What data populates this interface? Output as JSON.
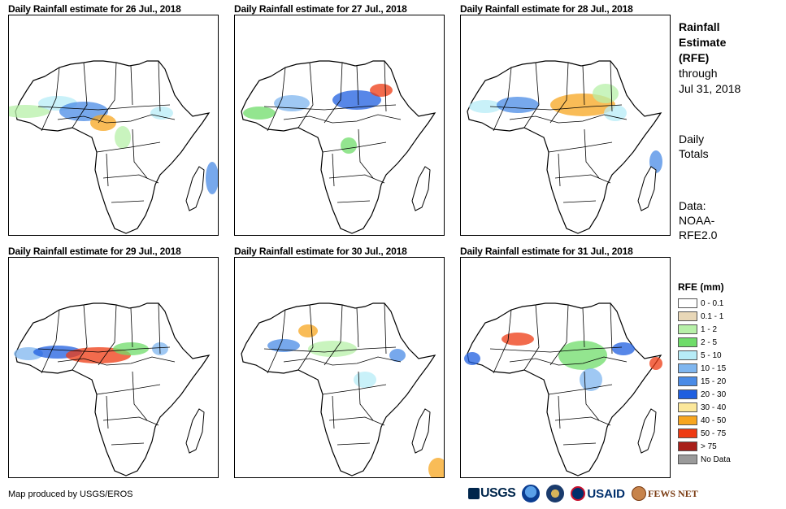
{
  "panels": [
    {
      "title": "Daily Rainfall estimate for 26 Jul., 2018"
    },
    {
      "title": "Daily Rainfall estimate for 27 Jul., 2018"
    },
    {
      "title": "Daily Rainfall estimate for 28 Jul., 2018"
    },
    {
      "title": "Daily Rainfall estimate for 29 Jul., 2018"
    },
    {
      "title": "Daily Rainfall estimate for 30 Jul., 2018"
    },
    {
      "title": "Daily Rainfall estimate for 31 Jul., 2018"
    }
  ],
  "sidebar": {
    "title_lines": [
      "Rainfall",
      "Estimate",
      "(RFE)"
    ],
    "through_lines": [
      "through",
      "Jul 31, 2018"
    ],
    "totals_lines": [
      "Daily",
      "Totals"
    ],
    "data_lines": [
      "Data:",
      "NOAA-",
      "RFE2.0"
    ]
  },
  "legend": {
    "title": "RFE (mm)",
    "items": [
      {
        "label": "0 - 0.1",
        "color": "#ffffff"
      },
      {
        "label": "0.1 - 1",
        "color": "#e8d7b7"
      },
      {
        "label": "1 - 2",
        "color": "#b7f0a8"
      },
      {
        "label": "2 - 5",
        "color": "#6fdc6a"
      },
      {
        "label": "5 - 10",
        "color": "#b7ecf7"
      },
      {
        "label": "10 - 15",
        "color": "#7fb6ef"
      },
      {
        "label": "15 - 20",
        "color": "#4a8be6"
      },
      {
        "label": "20 - 30",
        "color": "#1f5fe0"
      },
      {
        "label": "30 - 40",
        "color": "#fbe79a"
      },
      {
        "label": "40 - 50",
        "color": "#f7a51f"
      },
      {
        "label": "50 - 75",
        "color": "#ee3a12"
      },
      {
        "label": "> 75",
        "color": "#a8201a"
      },
      {
        "label": "No Data",
        "color": "#9a9a9a"
      }
    ]
  },
  "footer": {
    "credit": "Map produced by USGS/EROS",
    "logos": {
      "usgs": "USGS",
      "usaid": "USAID",
      "fews": "FEWS NET"
    }
  }
}
